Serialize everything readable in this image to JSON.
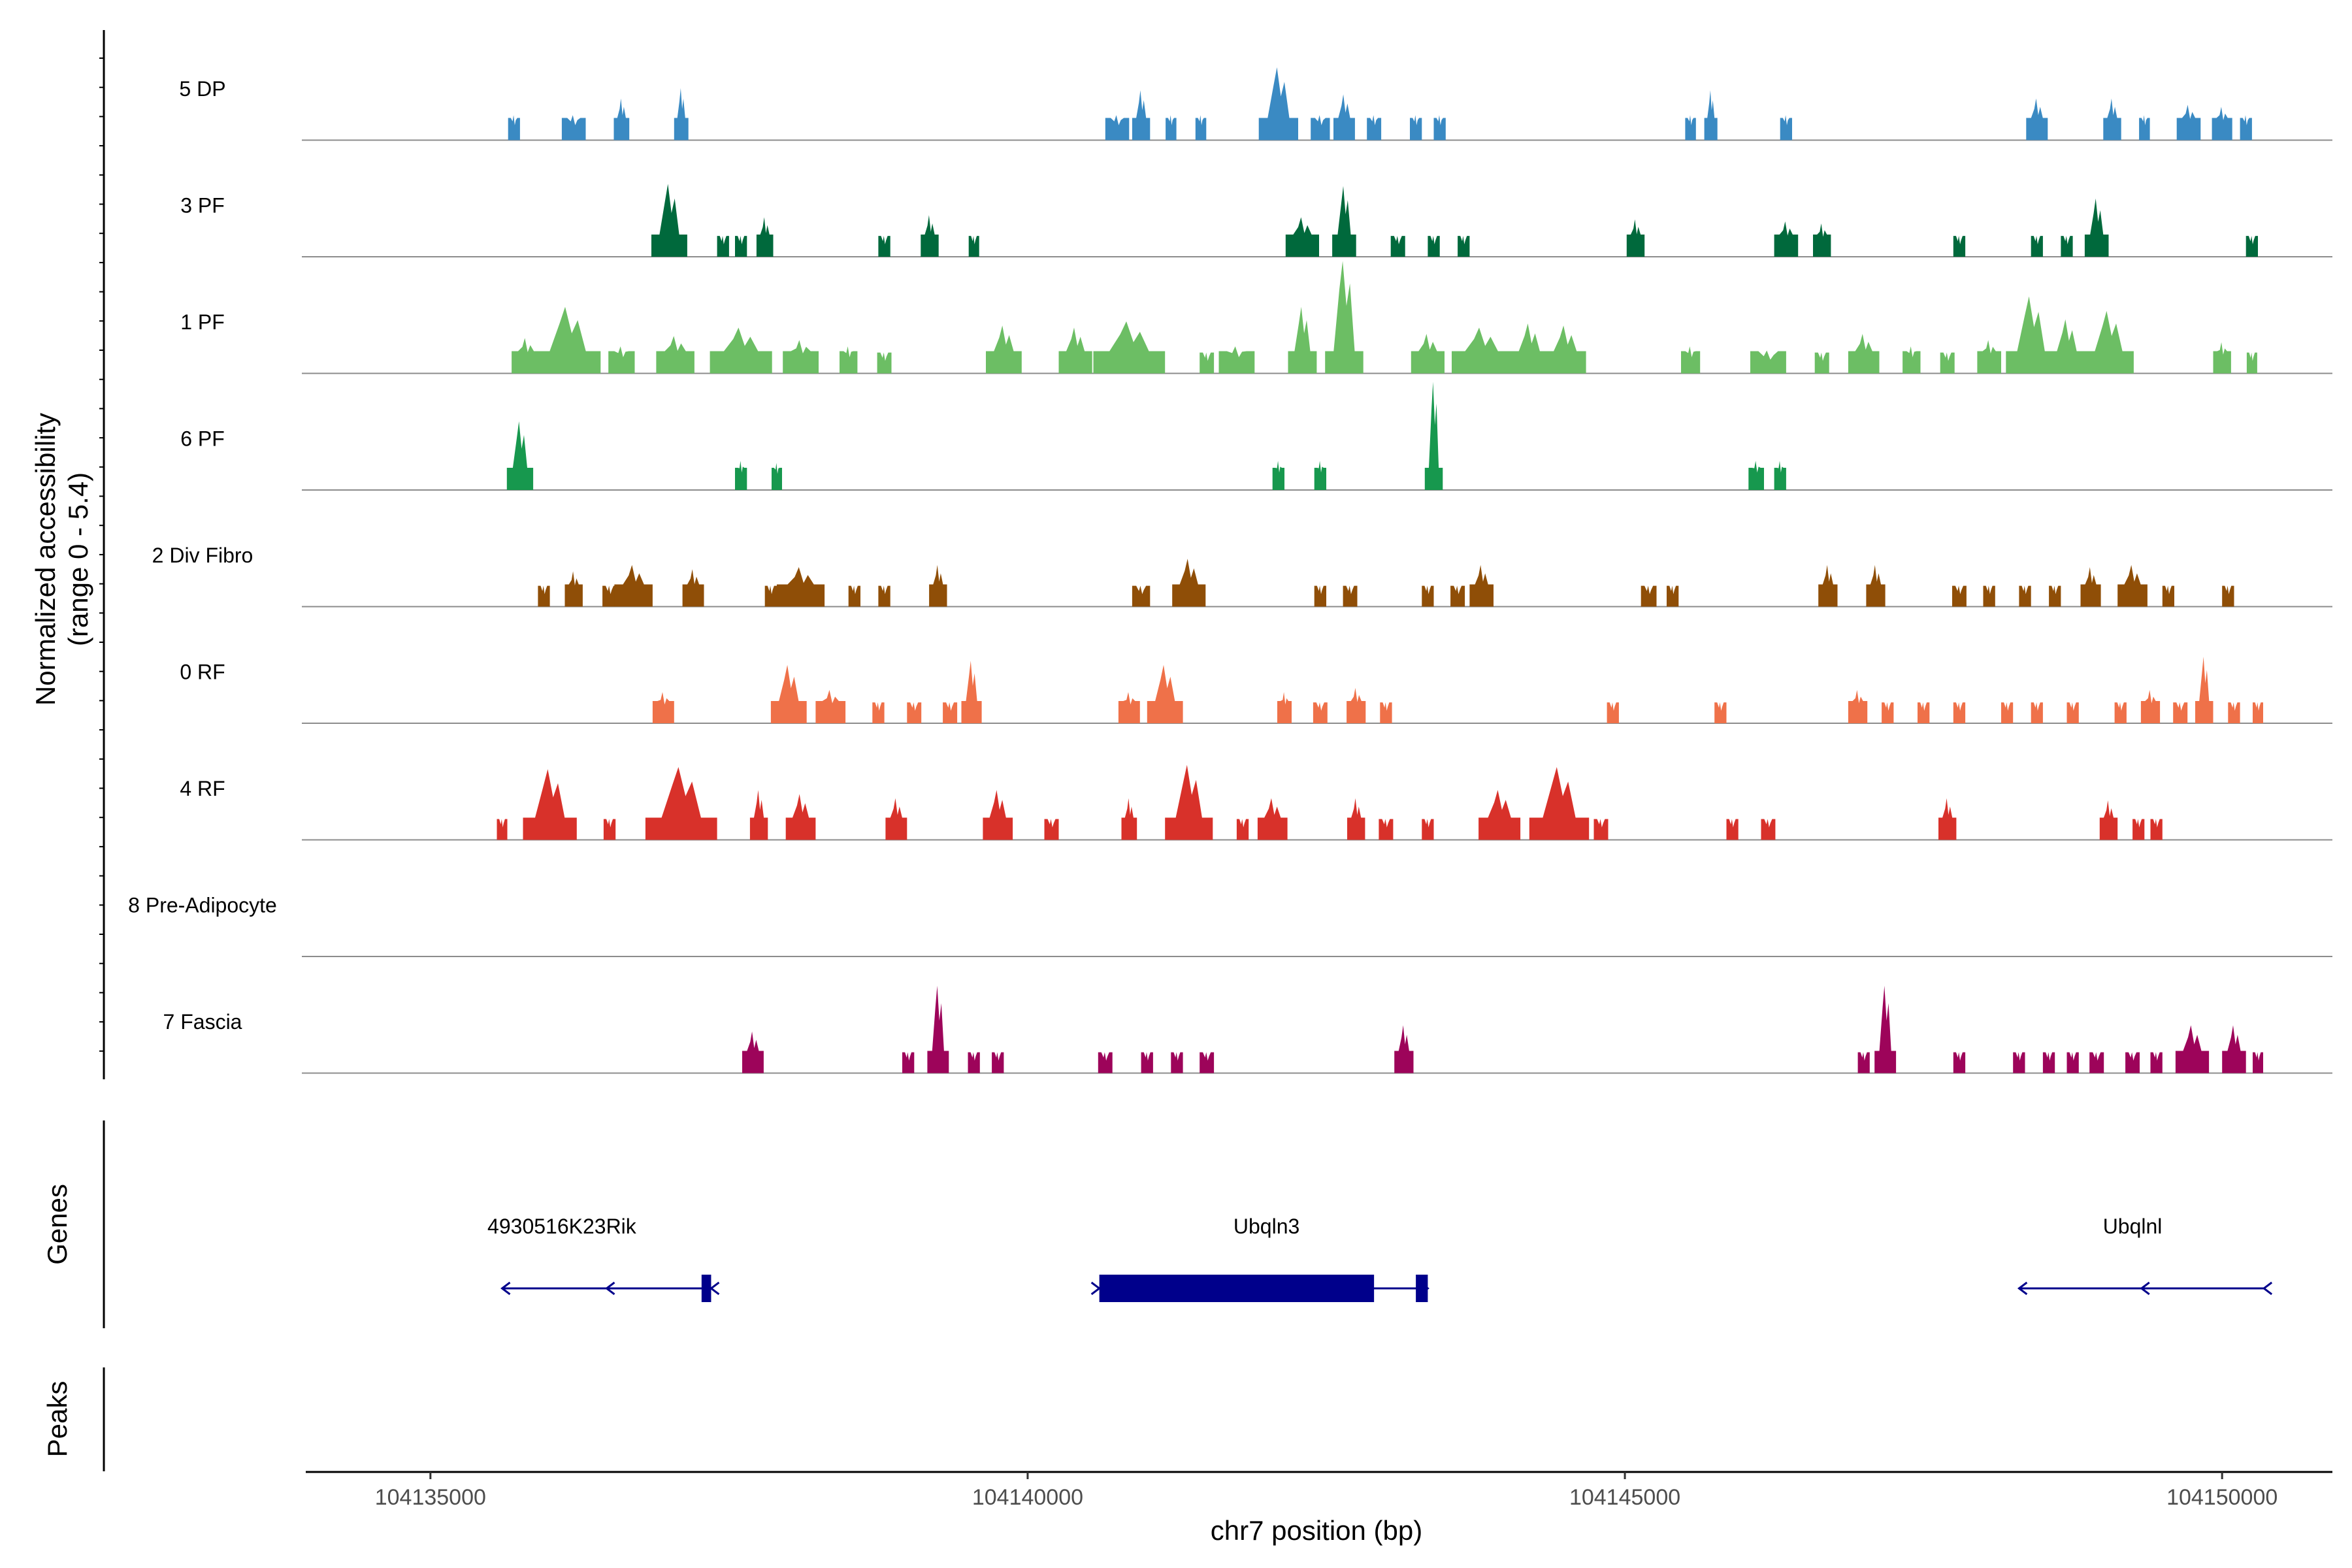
{
  "chart_data": {
    "type": "area",
    "title": "",
    "xlabel": "chr7 position (bp)",
    "ylabel": "Normalized accessibility\n(range 0 - 5.4)",
    "ylabel_lines": [
      "Normalized accessibility",
      "(range 0 - 5.4)"
    ],
    "ylim": [
      0,
      5.4
    ],
    "xlim": [
      104134000,
      104151000
    ],
    "x_ticks": [
      104135000,
      104140000,
      104145000,
      104150000
    ],
    "x_tick_labels": [
      "104135000",
      "104140000",
      "104145000",
      "104150000"
    ],
    "series": [
      {
        "name": "5 DP",
        "color": "#3a8ac3",
        "peaks": [
          [
            104135700,
            1.2,
            100
          ],
          [
            104136200,
            1.2,
            200
          ],
          [
            104136600,
            2.0,
            130
          ],
          [
            104137100,
            2.5,
            120
          ],
          [
            104140750,
            1.2,
            200
          ],
          [
            104140950,
            2.4,
            150
          ],
          [
            104141200,
            1.2,
            90
          ],
          [
            104141450,
            1.2,
            90
          ],
          [
            104142100,
            3.5,
            330
          ],
          [
            104142450,
            1.2,
            160
          ],
          [
            104142650,
            2.2,
            180
          ],
          [
            104142900,
            1.2,
            120
          ],
          [
            104143250,
            1.2,
            100
          ],
          [
            104143450,
            1.2,
            100
          ],
          [
            104145550,
            1.2,
            90
          ],
          [
            104145720,
            2.4,
            110
          ],
          [
            104146350,
            1.2,
            100
          ],
          [
            104148450,
            2.0,
            180
          ],
          [
            104149080,
            2.0,
            150
          ],
          [
            104149350,
            1.2,
            90
          ],
          [
            104149720,
            1.7,
            200
          ],
          [
            104150000,
            1.6,
            170
          ],
          [
            104150200,
            1.2,
            100
          ]
        ]
      },
      {
        "name": "3 PF",
        "color": "#00693c",
        "peaks": [
          [
            104137000,
            3.5,
            300
          ],
          [
            104137450,
            1.0,
            100
          ],
          [
            104137600,
            1.0,
            100
          ],
          [
            104137800,
            1.9,
            140
          ],
          [
            104138800,
            1.0,
            100
          ],
          [
            104139180,
            2.0,
            150
          ],
          [
            104139550,
            1.0,
            80
          ],
          [
            104142300,
            1.9,
            280
          ],
          [
            104142650,
            3.4,
            200
          ],
          [
            104143100,
            1.0,
            120
          ],
          [
            104143400,
            1.0,
            100
          ],
          [
            104143650,
            1.0,
            100
          ],
          [
            104145090,
            1.8,
            150
          ],
          [
            104146350,
            1.7,
            200
          ],
          [
            104146650,
            1.6,
            150
          ],
          [
            104147800,
            1.0,
            100
          ],
          [
            104148450,
            1.0,
            100
          ],
          [
            104148700,
            1.0,
            100
          ],
          [
            104148950,
            2.8,
            200
          ],
          [
            104150250,
            1.0,
            100
          ]
        ]
      },
      {
        "name": "1 PF",
        "color": "#6cbe64",
        "peaks": [
          [
            104135800,
            1.7,
            240
          ],
          [
            104136150,
            3.2,
            550
          ],
          [
            104136600,
            1.3,
            220
          ],
          [
            104137050,
            1.8,
            320
          ],
          [
            104137600,
            2.2,
            520
          ],
          [
            104138100,
            1.6,
            300
          ],
          [
            104138500,
            1.3,
            150
          ],
          [
            104138800,
            1.0,
            120
          ],
          [
            104139800,
            2.3,
            300
          ],
          [
            104140400,
            2.2,
            280
          ],
          [
            104140850,
            2.5,
            600
          ],
          [
            104141500,
            1.0,
            120
          ],
          [
            104141750,
            1.3,
            300
          ],
          [
            104142300,
            3.2,
            240
          ],
          [
            104142650,
            5.4,
            320
          ],
          [
            104143350,
            1.9,
            280
          ],
          [
            104143800,
            2.2,
            500
          ],
          [
            104144200,
            2.4,
            320
          ],
          [
            104144500,
            2.3,
            350
          ],
          [
            104145550,
            1.3,
            160
          ],
          [
            104146200,
            1.1,
            300
          ],
          [
            104146650,
            1.0,
            120
          ],
          [
            104147000,
            1.9,
            260
          ],
          [
            104147400,
            1.3,
            150
          ],
          [
            104147700,
            1.0,
            120
          ],
          [
            104148050,
            1.6,
            200
          ],
          [
            104148400,
            3.7,
            420
          ],
          [
            104148700,
            2.6,
            300
          ],
          [
            104149050,
            3.0,
            420
          ],
          [
            104150000,
            1.5,
            150
          ],
          [
            104150250,
            1.0,
            80
          ]
        ]
      },
      {
        "name": "6 PF",
        "color": "#17984e",
        "peaks": [
          [
            104135750,
            3.3,
            220
          ],
          [
            104137600,
            1.4,
            100
          ],
          [
            104137900,
            1.3,
            80
          ],
          [
            104142100,
            1.4,
            100
          ],
          [
            104142450,
            1.4,
            100
          ],
          [
            104143400,
            5.2,
            150
          ],
          [
            104146100,
            1.4,
            130
          ],
          [
            104146300,
            1.4,
            100
          ]
        ]
      },
      {
        "name": "2 Div Fibro",
        "color": "#8f4e07",
        "peaks": [
          [
            104135950,
            1.0,
            100
          ],
          [
            104136200,
            1.7,
            150
          ],
          [
            104136500,
            1.0,
            120
          ],
          [
            104136700,
            2.0,
            320
          ],
          [
            104137200,
            1.8,
            180
          ],
          [
            104137850,
            1.0,
            100
          ],
          [
            104138100,
            1.9,
            400
          ],
          [
            104138550,
            1.0,
            100
          ],
          [
            104138800,
            1.0,
            100
          ],
          [
            104139250,
            2.0,
            150
          ],
          [
            104140950,
            1.0,
            150
          ],
          [
            104141350,
            2.3,
            280
          ],
          [
            104142450,
            1.0,
            100
          ],
          [
            104142700,
            1.0,
            120
          ],
          [
            104143350,
            1.0,
            100
          ],
          [
            104143600,
            1.0,
            120
          ],
          [
            104143800,
            2.0,
            200
          ],
          [
            104145200,
            1.0,
            130
          ],
          [
            104145400,
            1.0,
            100
          ],
          [
            104146700,
            2.0,
            160
          ],
          [
            104147100,
            2.0,
            160
          ],
          [
            104147800,
            1.0,
            120
          ],
          [
            104148050,
            1.0,
            100
          ],
          [
            104148350,
            1.0,
            100
          ],
          [
            104148600,
            1.0,
            100
          ],
          [
            104148900,
            1.9,
            170
          ],
          [
            104149250,
            2.0,
            250
          ],
          [
            104149550,
            1.0,
            100
          ],
          [
            104150050,
            1.0,
            100
          ]
        ]
      },
      {
        "name": "0 RF",
        "color": "#ef7149",
        "peaks": [
          [
            104136950,
            1.5,
            180
          ],
          [
            104138000,
            2.8,
            300
          ],
          [
            104138350,
            1.6,
            250
          ],
          [
            104138750,
            1.0,
            100
          ],
          [
            104139050,
            1.0,
            120
          ],
          [
            104139350,
            1.0,
            120
          ],
          [
            104139530,
            3.0,
            170
          ],
          [
            104140850,
            1.5,
            180
          ],
          [
            104141150,
            2.8,
            300
          ],
          [
            104142150,
            1.5,
            120
          ],
          [
            104142450,
            1.0,
            120
          ],
          [
            104142750,
            1.7,
            160
          ],
          [
            104143000,
            1.0,
            100
          ],
          [
            104144900,
            1.0,
            100
          ],
          [
            104145800,
            1.0,
            100
          ],
          [
            104146950,
            1.6,
            160
          ],
          [
            104147200,
            1.0,
            100
          ],
          [
            104147500,
            1.0,
            100
          ],
          [
            104147800,
            1.0,
            100
          ],
          [
            104148200,
            1.0,
            100
          ],
          [
            104148450,
            1.0,
            100
          ],
          [
            104148750,
            1.0,
            100
          ],
          [
            104149150,
            1.0,
            100
          ],
          [
            104149400,
            1.6,
            160
          ],
          [
            104149650,
            1.0,
            120
          ],
          [
            104149850,
            3.2,
            150
          ],
          [
            104150100,
            1.0,
            100
          ],
          [
            104150300,
            1.0,
            50
          ]
        ]
      },
      {
        "name": "4 RF",
        "color": "#d8312a",
        "peaks": [
          [
            104135600,
            1.0,
            60
          ],
          [
            104136000,
            3.4,
            450
          ],
          [
            104136500,
            1.0,
            100
          ],
          [
            104137100,
            3.5,
            600
          ],
          [
            104137750,
            2.4,
            150
          ],
          [
            104138100,
            2.2,
            250
          ],
          [
            104138900,
            2.0,
            180
          ],
          [
            104139750,
            2.4,
            250
          ],
          [
            104140200,
            1.0,
            120
          ],
          [
            104140850,
            2.0,
            130
          ],
          [
            104141350,
            3.6,
            400
          ],
          [
            104141800,
            1.0,
            100
          ],
          [
            104142050,
            2.0,
            250
          ],
          [
            104142750,
            2.0,
            150
          ],
          [
            104143000,
            1.0,
            120
          ],
          [
            104143350,
            1.0,
            100
          ],
          [
            104143950,
            2.4,
            350
          ],
          [
            104144450,
            3.5,
            500
          ],
          [
            104144800,
            1.0,
            120
          ],
          [
            104145900,
            1.0,
            100
          ],
          [
            104146200,
            1.0,
            120
          ],
          [
            104147700,
            2.0,
            150
          ],
          [
            104149050,
            1.9,
            150
          ],
          [
            104149300,
            1.0,
            100
          ],
          [
            104149450,
            1.0,
            100
          ]
        ]
      },
      {
        "name": "8 Pre-Adipocyte",
        "color": "#999999",
        "peaks": []
      },
      {
        "name": "7 Fascia",
        "color": "#9d045a",
        "peaks": [
          [
            104137700,
            2.0,
            180
          ],
          [
            104139000,
            1.0,
            100
          ],
          [
            104139250,
            4.2,
            180
          ],
          [
            104139550,
            1.0,
            100
          ],
          [
            104139750,
            1.0,
            100
          ],
          [
            104140650,
            1.0,
            120
          ],
          [
            104141000,
            1.0,
            100
          ],
          [
            104141250,
            1.0,
            100
          ],
          [
            104141500,
            1.0,
            120
          ],
          [
            104143150,
            2.3,
            160
          ],
          [
            104147000,
            1.0,
            100
          ],
          [
            104147180,
            4.2,
            180
          ],
          [
            104147800,
            1.0,
            100
          ],
          [
            104148300,
            1.0,
            100
          ],
          [
            104148550,
            1.0,
            100
          ],
          [
            104148750,
            1.0,
            100
          ],
          [
            104148950,
            1.0,
            120
          ],
          [
            104149250,
            1.0,
            120
          ],
          [
            104149450,
            1.0,
            100
          ],
          [
            104149750,
            2.3,
            280
          ],
          [
            104150100,
            2.3,
            200
          ],
          [
            104150300,
            1.0,
            50
          ]
        ]
      }
    ],
    "genes": [
      {
        "name": "4930516K23Rik",
        "start": 104135600,
        "end": 104137350,
        "strand": "-",
        "exons": [
          [
            104137270,
            104137350
          ]
        ],
        "label_pos": 104136100
      },
      {
        "name": "Ubqln3",
        "start": 104140600,
        "end": 104143350,
        "strand": "+",
        "exons": [
          [
            104140600,
            104142900
          ],
          [
            104143250,
            104143350
          ]
        ],
        "label_pos": 104142000
      },
      {
        "name": "Ubqlnl",
        "start": 104148300,
        "end": 104150350,
        "strand": "-",
        "exons": [],
        "label_pos": 104149250
      }
    ],
    "panels": {
      "genes_title": "Genes",
      "peaks_title": "Peaks"
    }
  }
}
